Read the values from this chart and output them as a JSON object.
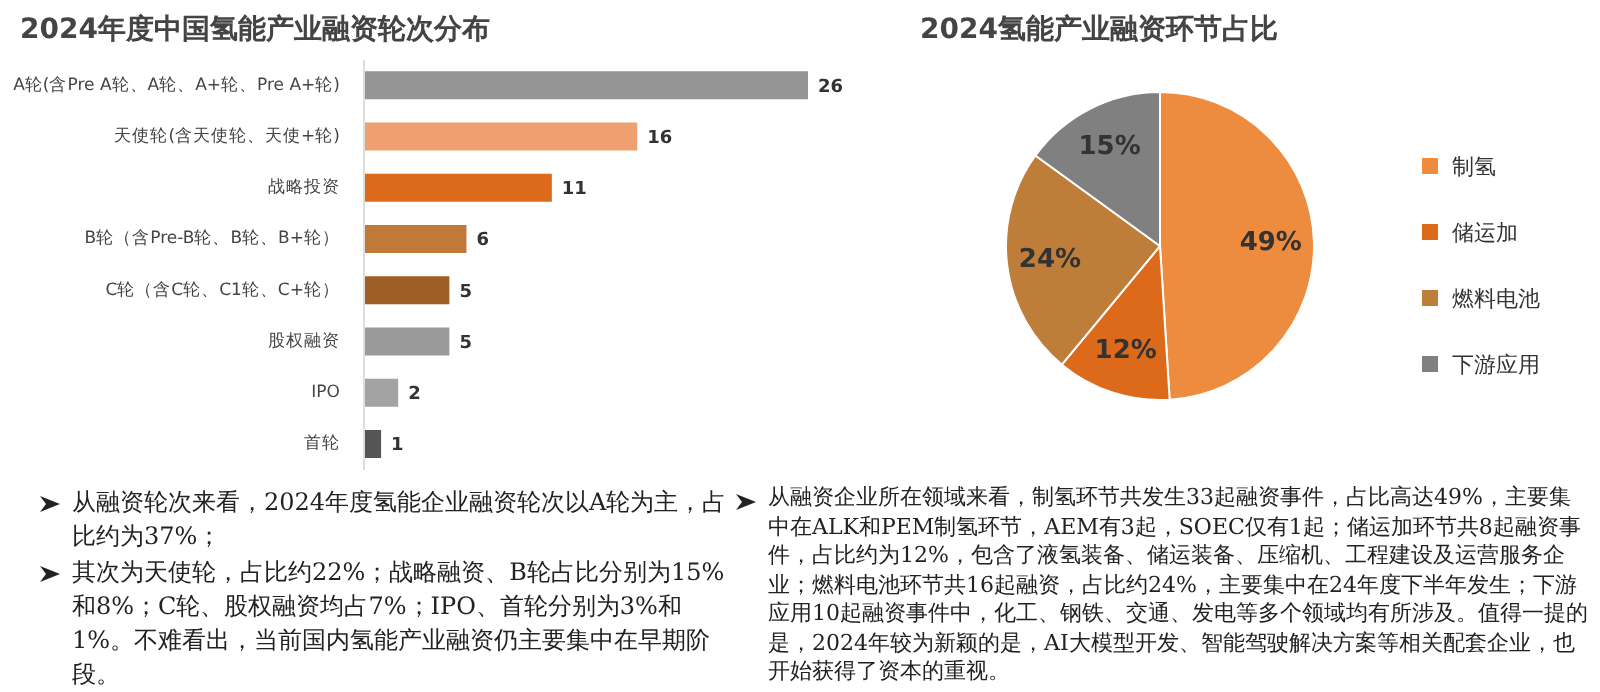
{
  "chart_data": [
    {
      "type": "bar",
      "orientation": "horizontal",
      "title": "2024年度中国氢能产业融资轮次分布",
      "categories": [
        "A轮(含Pre A轮、A轮、A+轮、Pre A+轮)",
        "天使轮(含天使轮、天使+轮)",
        "战略投资",
        "B轮（含Pre-B轮、B轮、B+轮）",
        "C轮（含C轮、C1轮、C+轮）",
        "股权融资",
        "IPO",
        "首轮"
      ],
      "values": [
        26,
        16,
        11,
        6,
        5,
        5,
        2,
        1
      ],
      "colors": [
        "#959595",
        "#f0a070",
        "#dd6a1a",
        "#bf7a3a",
        "#9e5e26",
        "#9a9a9a",
        "#a3a3a3",
        "#555555"
      ],
      "data_labels": true,
      "tick_labels": "y",
      "annotations": [
        "从融资轮次来看，2024年度氢能企业融资轮次以A轮为主，占比约为37%；",
        "其次为天使轮，占比约22%；战略融资、B轮占比分别为15%和8%；C轮、股权融资均占7%；IPO、首轮分别为3%和1%。不难看出，当前国内氢能产业融资仍主要集中在早期阶段。"
      ]
    },
    {
      "type": "pie",
      "title": "2024氢能产业融资环节占比",
      "categories": [
        "制氢",
        "储运加",
        "燃料电池",
        "下游应用"
      ],
      "values": [
        49,
        12,
        24,
        15
      ],
      "colors": [
        "#ed8b3f",
        "#dd6a1a",
        "#bf7d3a",
        "#808080"
      ],
      "value_labels": [
        "49%",
        "12%",
        "24%",
        "15%"
      ],
      "legend": "right",
      "annotations": [
        "从融资企业所在领域来看，制氢环节共发生33起融资事件，占比高达49%，主要集中在ALK和PEM制氢环节，AEM有3起，SOEC仅有1起；储运加环节共8起融资事件，占比约为12%，包含了液氢装备、储运装备、压缩机、工程建设及运营服务企业；燃料电池环节共16起融资，占比约24%，主要集中在24年度下半年发生；下游应用10起融资事件中，化工、钢铁、交通、发电等多个领域均有所涉及。值得一提的是，2024年较为新颖的是，AI大模型开发、智能驾驶解决方案等相关配套企业，也开始获得了资本的重视。"
      ]
    }
  ]
}
